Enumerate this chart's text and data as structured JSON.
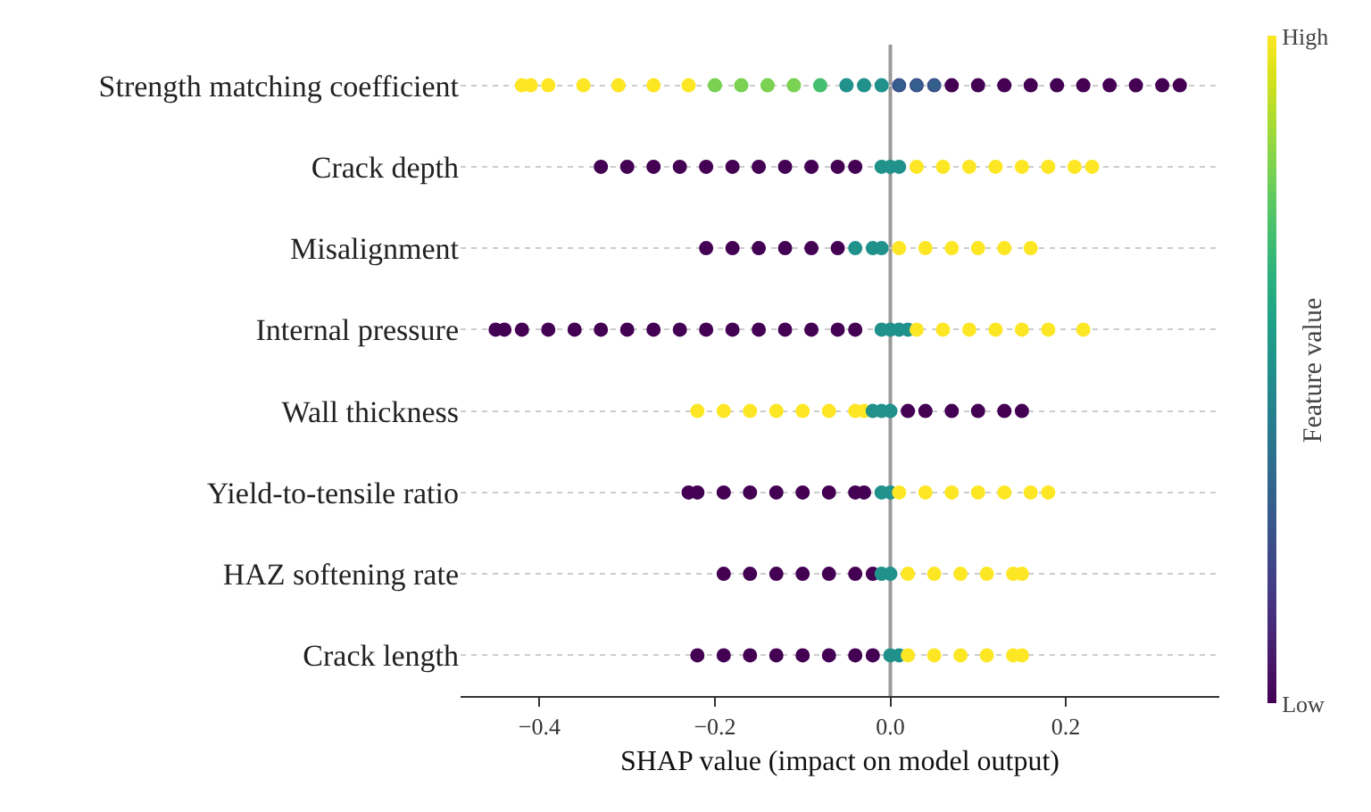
{
  "chart_data": {
    "type": "scatter",
    "orientation": "horizontal",
    "xlabel": "SHAP value (impact on model output)",
    "clabel": "Feature value",
    "categories": [
      "Strength matching coefficient",
      "Crack depth",
      "Misalignment",
      "Internal pressure",
      "Wall thickness",
      "Yield-to-tensile ratio",
      "HAZ softening rate",
      "Crack length"
    ],
    "xlim": [
      -0.49,
      0.375
    ],
    "xticks": [
      {
        "value": -0.4,
        "label": "−0.4"
      },
      {
        "value": -0.2,
        "label": "−0.2"
      },
      {
        "value": 0,
        "label": "0.0"
      },
      {
        "value": 0.2,
        "label": "0.2"
      }
    ],
    "clim": [
      0,
      1
    ],
    "cticks": [
      {
        "value": 0,
        "label": "Low"
      },
      {
        "value": 1,
        "label": "High"
      }
    ],
    "grid": "y",
    "marker": "circle",
    "ref_lines": [
      {
        "axis": "x",
        "value": 0,
        "label": null,
        "color": "#999999"
      }
    ],
    "series": [
      {
        "x": [
          "Strength matching coefficient",
          "Strength matching coefficient",
          "Strength matching coefficient",
          "Strength matching coefficient",
          "Strength matching coefficient",
          "Strength matching coefficient",
          "Strength matching coefficient",
          "Strength matching coefficient",
          "Strength matching coefficient",
          "Strength matching coefficient",
          "Strength matching coefficient",
          "Strength matching coefficient",
          "Strength matching coefficient",
          "Strength matching coefficient",
          "Strength matching coefficient",
          "Strength matching coefficient",
          "Strength matching coefficient",
          "Strength matching coefficient",
          "Strength matching coefficient",
          "Strength matching coefficient",
          "Strength matching coefficient",
          "Strength matching coefficient",
          "Strength matching coefficient",
          "Strength matching coefficient",
          "Strength matching coefficient",
          "Strength matching coefficient",
          "Strength matching coefficient",
          "Strength matching coefficient"
        ],
        "values": [
          -0.42,
          -0.41,
          -0.39,
          -0.35,
          -0.31,
          -0.27,
          -0.23,
          -0.2,
          -0.17,
          -0.14,
          -0.11,
          -0.08,
          -0.05,
          -0.03,
          -0.01,
          0.01,
          0.03,
          0.05,
          0.07,
          0.1,
          0.13,
          0.16,
          0.19,
          0.22,
          0.25,
          0.28,
          0.31,
          0.33
        ],
        "colors": [
          "#fde725",
          "#fde725",
          "#fde725",
          "#fde725",
          "#fde725",
          "#fde725",
          "#fde725",
          "#7ad151",
          "#7ad151",
          "#7ad151",
          "#7ad151",
          "#44bf70",
          "#21918c",
          "#21918c",
          "#21918c",
          "#3b528b",
          "#3b528b",
          "#3b528b",
          "#440154",
          "#440154",
          "#440154",
          "#440154",
          "#440154",
          "#440154",
          "#440154",
          "#440154",
          "#440154",
          "#440154"
        ],
        "cvalues": [
          1,
          1,
          1,
          1,
          1,
          1,
          1,
          0.8,
          0.8,
          0.8,
          0.8,
          0.7,
          0.5,
          0.5,
          0.5,
          0.3,
          0.3,
          0.3,
          0,
          0,
          0,
          0,
          0,
          0,
          0,
          0,
          0,
          0
        ]
      },
      {
        "x": [
          "Crack depth",
          "Crack depth",
          "Crack depth",
          "Crack depth",
          "Crack depth",
          "Crack depth",
          "Crack depth",
          "Crack depth",
          "Crack depth",
          "Crack depth",
          "Crack depth",
          "Crack depth",
          "Crack depth",
          "Crack depth",
          "Crack depth",
          "Crack depth",
          "Crack depth",
          "Crack depth",
          "Crack depth",
          "Crack depth",
          "Crack depth",
          "Crack depth"
        ],
        "values": [
          -0.33,
          -0.3,
          -0.27,
          -0.24,
          -0.21,
          -0.18,
          -0.15,
          -0.12,
          -0.09,
          -0.06,
          -0.04,
          -0.01,
          0,
          0.01,
          0.03,
          0.06,
          0.09,
          0.12,
          0.15,
          0.18,
          0.21,
          0.23
        ],
        "colors": [
          "#440154",
          "#440154",
          "#440154",
          "#440154",
          "#440154",
          "#440154",
          "#440154",
          "#440154",
          "#440154",
          "#440154",
          "#440154",
          "#21918c",
          "#21918c",
          "#21918c",
          "#fde725",
          "#fde725",
          "#fde725",
          "#fde725",
          "#fde725",
          "#fde725",
          "#fde725",
          "#fde725"
        ],
        "cvalues": [
          0,
          0,
          0,
          0,
          0,
          0,
          0,
          0,
          0,
          0,
          0,
          0.5,
          0.5,
          0.5,
          1,
          1,
          1,
          1,
          1,
          1,
          1,
          1
        ]
      },
      {
        "x": [
          "Misalignment",
          "Misalignment",
          "Misalignment",
          "Misalignment",
          "Misalignment",
          "Misalignment",
          "Misalignment",
          "Misalignment",
          "Misalignment",
          "Misalignment",
          "Misalignment",
          "Misalignment",
          "Misalignment",
          "Misalignment",
          "Misalignment"
        ],
        "values": [
          -0.21,
          -0.18,
          -0.15,
          -0.12,
          -0.09,
          -0.06,
          -0.04,
          -0.02,
          -0.01,
          0.01,
          0.04,
          0.07,
          0.1,
          0.13,
          0.16
        ],
        "colors": [
          "#440154",
          "#440154",
          "#440154",
          "#440154",
          "#440154",
          "#440154",
          "#21918c",
          "#21918c",
          "#21918c",
          "#fde725",
          "#fde725",
          "#fde725",
          "#fde725",
          "#fde725",
          "#fde725"
        ],
        "cvalues": [
          0,
          0,
          0,
          0,
          0,
          0,
          0.5,
          0.5,
          0.5,
          1,
          1,
          1,
          1,
          1,
          1
        ]
      },
      {
        "x": [
          "Internal pressure",
          "Internal pressure",
          "Internal pressure",
          "Internal pressure",
          "Internal pressure",
          "Internal pressure",
          "Internal pressure",
          "Internal pressure",
          "Internal pressure",
          "Internal pressure",
          "Internal pressure",
          "Internal pressure",
          "Internal pressure",
          "Internal pressure",
          "Internal pressure",
          "Internal pressure",
          "Internal pressure",
          "Internal pressure",
          "Internal pressure",
          "Internal pressure",
          "Internal pressure",
          "Internal pressure",
          "Internal pressure",
          "Internal pressure",
          "Internal pressure",
          "Internal pressure",
          "Internal pressure"
        ],
        "values": [
          -0.45,
          -0.44,
          -0.42,
          -0.39,
          -0.36,
          -0.33,
          -0.3,
          -0.27,
          -0.24,
          -0.21,
          -0.18,
          -0.15,
          -0.12,
          -0.09,
          -0.06,
          -0.04,
          -0.01,
          0,
          0.01,
          0.02,
          0.03,
          0.06,
          0.09,
          0.12,
          0.15,
          0.18,
          0.22
        ],
        "colors": [
          "#440154",
          "#440154",
          "#440154",
          "#440154",
          "#440154",
          "#440154",
          "#440154",
          "#440154",
          "#440154",
          "#440154",
          "#440154",
          "#440154",
          "#440154",
          "#440154",
          "#440154",
          "#440154",
          "#21918c",
          "#21918c",
          "#21918c",
          "#21918c",
          "#fde725",
          "#fde725",
          "#fde725",
          "#fde725",
          "#fde725",
          "#fde725",
          "#fde725"
        ],
        "cvalues": [
          0,
          0,
          0,
          0,
          0,
          0,
          0,
          0,
          0,
          0,
          0,
          0,
          0,
          0,
          0,
          0,
          0.5,
          0.5,
          0.5,
          0.5,
          1,
          1,
          1,
          1,
          1,
          1,
          1
        ]
      },
      {
        "x": [
          "Wall thickness",
          "Wall thickness",
          "Wall thickness",
          "Wall thickness",
          "Wall thickness",
          "Wall thickness",
          "Wall thickness",
          "Wall thickness",
          "Wall thickness",
          "Wall thickness",
          "Wall thickness",
          "Wall thickness",
          "Wall thickness",
          "Wall thickness",
          "Wall thickness",
          "Wall thickness",
          "Wall thickness"
        ],
        "values": [
          -0.22,
          -0.19,
          -0.16,
          -0.13,
          -0.1,
          -0.07,
          -0.04,
          -0.03,
          -0.02,
          -0.01,
          0,
          0.02,
          0.04,
          0.07,
          0.1,
          0.13,
          0.15
        ],
        "colors": [
          "#fde725",
          "#fde725",
          "#fde725",
          "#fde725",
          "#fde725",
          "#fde725",
          "#fde725",
          "#fde725",
          "#21918c",
          "#21918c",
          "#21918c",
          "#440154",
          "#440154",
          "#440154",
          "#440154",
          "#440154",
          "#440154"
        ],
        "cvalues": [
          1,
          1,
          1,
          1,
          1,
          1,
          1,
          1,
          0.5,
          0.5,
          0.5,
          0,
          0,
          0,
          0,
          0,
          0
        ]
      },
      {
        "x": [
          "Yield-to-tensile ratio",
          "Yield-to-tensile ratio",
          "Yield-to-tensile ratio",
          "Yield-to-tensile ratio",
          "Yield-to-tensile ratio",
          "Yield-to-tensile ratio",
          "Yield-to-tensile ratio",
          "Yield-to-tensile ratio",
          "Yield-to-tensile ratio",
          "Yield-to-tensile ratio",
          "Yield-to-tensile ratio",
          "Yield-to-tensile ratio",
          "Yield-to-tensile ratio",
          "Yield-to-tensile ratio",
          "Yield-to-tensile ratio",
          "Yield-to-tensile ratio",
          "Yield-to-tensile ratio",
          "Yield-to-tensile ratio"
        ],
        "values": [
          -0.23,
          -0.22,
          -0.19,
          -0.16,
          -0.13,
          -0.1,
          -0.07,
          -0.04,
          -0.03,
          -0.01,
          0,
          0.01,
          0.04,
          0.07,
          0.1,
          0.13,
          0.16,
          0.18
        ],
        "colors": [
          "#440154",
          "#440154",
          "#440154",
          "#440154",
          "#440154",
          "#440154",
          "#440154",
          "#440154",
          "#440154",
          "#21918c",
          "#21918c",
          "#fde725",
          "#fde725",
          "#fde725",
          "#fde725",
          "#fde725",
          "#fde725",
          "#fde725"
        ],
        "cvalues": [
          0,
          0,
          0,
          0,
          0,
          0,
          0,
          0,
          0,
          0.5,
          0.5,
          1,
          1,
          1,
          1,
          1,
          1,
          1
        ]
      },
      {
        "x": [
          "HAZ softening rate",
          "HAZ softening rate",
          "HAZ softening rate",
          "HAZ softening rate",
          "HAZ softening rate",
          "HAZ softening rate",
          "HAZ softening rate",
          "HAZ softening rate",
          "HAZ softening rate",
          "HAZ softening rate",
          "HAZ softening rate",
          "HAZ softening rate",
          "HAZ softening rate",
          "HAZ softening rate",
          "HAZ softening rate"
        ],
        "values": [
          -0.19,
          -0.16,
          -0.13,
          -0.1,
          -0.07,
          -0.04,
          -0.02,
          -0.01,
          0,
          0.02,
          0.05,
          0.08,
          0.11,
          0.14,
          0.15
        ],
        "colors": [
          "#440154",
          "#440154",
          "#440154",
          "#440154",
          "#440154",
          "#440154",
          "#440154",
          "#21918c",
          "#21918c",
          "#fde725",
          "#fde725",
          "#fde725",
          "#fde725",
          "#fde725",
          "#fde725"
        ],
        "cvalues": [
          0,
          0,
          0,
          0,
          0,
          0,
          0,
          0.5,
          0.5,
          1,
          1,
          1,
          1,
          1,
          1
        ]
      },
      {
        "x": [
          "Crack length",
          "Crack length",
          "Crack length",
          "Crack length",
          "Crack length",
          "Crack length",
          "Crack length",
          "Crack length",
          "Crack length",
          "Crack length",
          "Crack length",
          "Crack length",
          "Crack length",
          "Crack length",
          "Crack length",
          "Crack length"
        ],
        "values": [
          -0.22,
          -0.19,
          -0.16,
          -0.13,
          -0.1,
          -0.07,
          -0.04,
          -0.02,
          0,
          0.01,
          0.02,
          0.05,
          0.08,
          0.11,
          0.14,
          0.15
        ],
        "colors": [
          "#440154",
          "#440154",
          "#440154",
          "#440154",
          "#440154",
          "#440154",
          "#440154",
          "#440154",
          "#21918c",
          "#21918c",
          "#fde725",
          "#fde725",
          "#fde725",
          "#fde725",
          "#fde725",
          "#fde725"
        ],
        "cvalues": [
          0,
          0,
          0,
          0,
          0,
          0,
          0,
          0,
          0.5,
          0.5,
          1,
          1,
          1,
          1,
          1,
          1
        ]
      }
    ]
  }
}
